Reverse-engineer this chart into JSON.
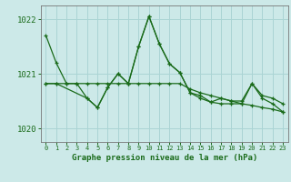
{
  "title": "Graphe pression niveau de la mer (hPa)",
  "background_color": "#cce9e8",
  "grid_color": "#aad4d4",
  "line_color": "#1a6b1a",
  "ylim": [
    1019.75,
    1022.25
  ],
  "yticks": [
    1020,
    1021,
    1022
  ],
  "xlim": [
    -0.5,
    23.5
  ],
  "xticks": [
    0,
    1,
    2,
    3,
    4,
    5,
    6,
    7,
    8,
    9,
    10,
    11,
    12,
    13,
    14,
    15,
    16,
    17,
    18,
    19,
    20,
    21,
    22,
    23
  ],
  "series1_y": [
    1021.7,
    1021.2,
    1020.82,
    1020.82,
    1020.55,
    1020.38,
    1020.75,
    1021.0,
    1020.82,
    1021.5,
    1022.05,
    1021.55,
    1021.18,
    1021.02,
    1020.65,
    1020.6,
    1020.48,
    1020.55,
    1020.5,
    1020.5,
    1020.82,
    1020.6,
    1020.55,
    1020.45
  ],
  "series2_y": [
    1020.82,
    1020.82,
    1020.82,
    1020.82,
    1020.82,
    1020.82,
    1020.82,
    1020.82,
    1020.82,
    1020.82,
    1020.82,
    1020.82,
    1020.82,
    1020.82,
    1020.72,
    1020.65,
    1020.6,
    1020.55,
    1020.5,
    1020.45,
    1020.42,
    1020.38,
    1020.35,
    1020.3
  ],
  "series3_x": [
    0,
    1,
    4,
    5,
    6,
    7,
    8,
    9,
    10,
    11,
    12,
    13,
    14,
    15,
    16,
    17,
    18,
    19,
    20,
    21,
    22,
    23
  ],
  "series3_y": [
    1020.82,
    1020.82,
    1020.55,
    1020.38,
    1020.75,
    1021.0,
    1020.82,
    1021.5,
    1022.05,
    1021.55,
    1021.18,
    1021.02,
    1020.65,
    1020.55,
    1020.48,
    1020.45,
    1020.45,
    1020.45,
    1020.82,
    1020.55,
    1020.45,
    1020.3
  ]
}
